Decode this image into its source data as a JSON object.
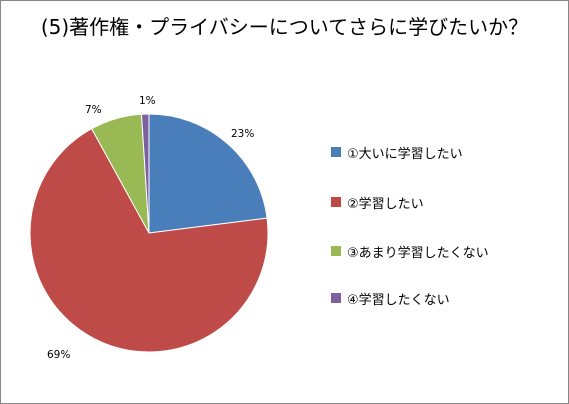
{
  "chart_data": {
    "type": "pie",
    "title": "(5)著作権・プライバシーについてさらに学びたいか？",
    "categories": [
      "①大いに学習したい",
      "②学習したい",
      "③あまり学習したくない",
      "④学習したくない"
    ],
    "values": [
      23,
      69,
      7,
      1
    ],
    "data_labels": [
      "23%",
      "69%",
      "7%",
      "1%"
    ],
    "colors": [
      "#4a7ebb",
      "#be4b48",
      "#98b954",
      "#7d60a0"
    ],
    "start_angle_deg": 0,
    "direction": "clockwise",
    "legend_position": "right"
  }
}
